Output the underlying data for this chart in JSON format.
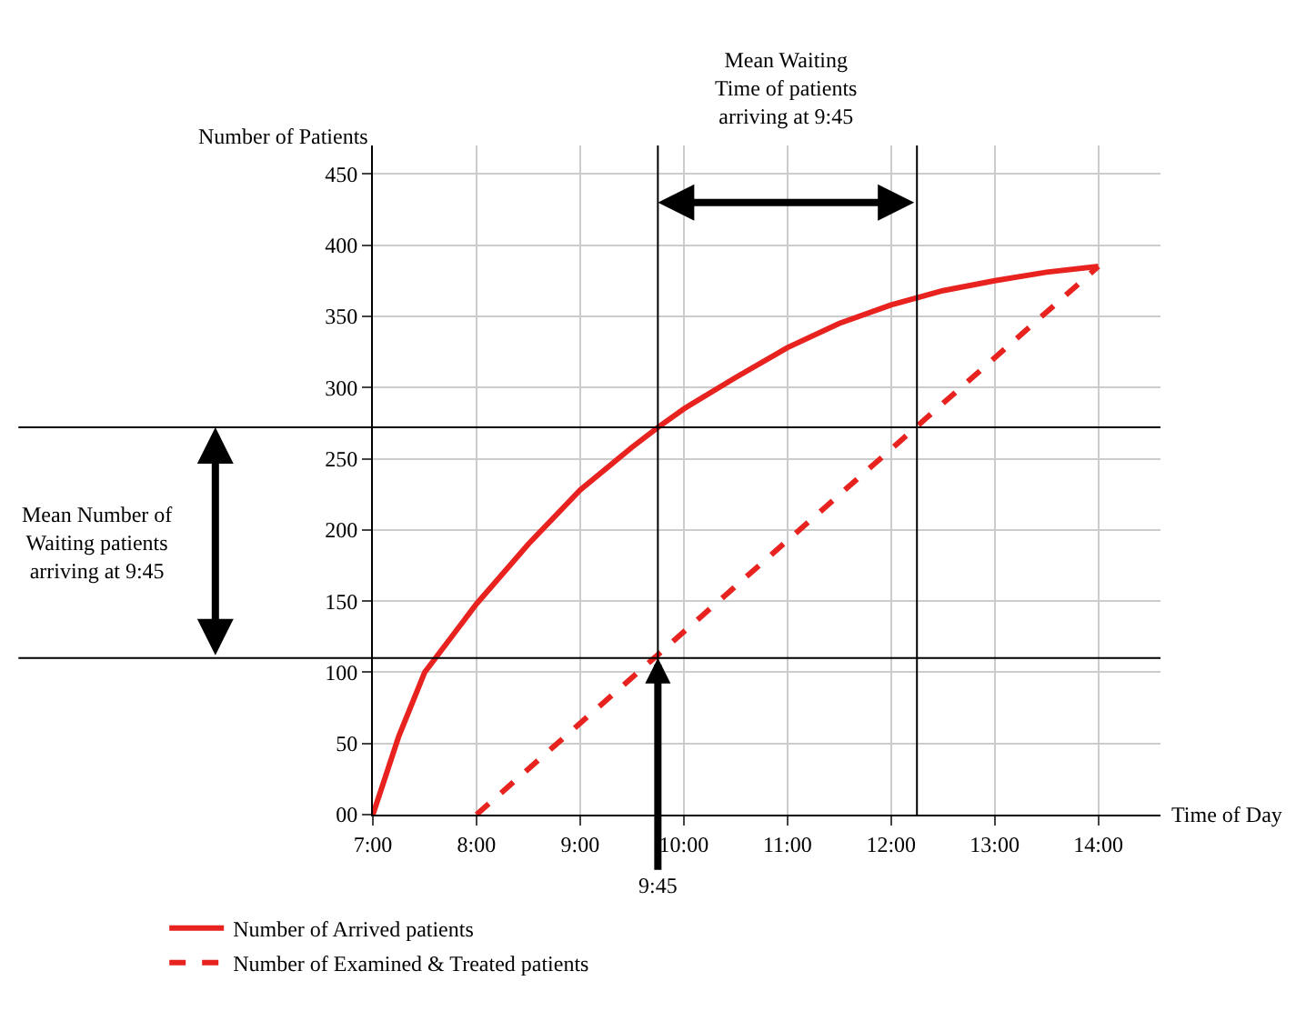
{
  "chart_data": {
    "type": "line",
    "xlabel": "Time of Day",
    "ylabel": "Number of Patients",
    "x": [
      7,
      7.25,
      7.5,
      8,
      8.5,
      9,
      9.5,
      9.75,
      10,
      10.5,
      11,
      11.5,
      12,
      12.5,
      13,
      13.5,
      14
    ],
    "series": [
      {
        "name": "Number of Arrived patients",
        "color": "#e8231f",
        "line_style": "solid",
        "values": [
          0,
          55,
          100,
          148,
          190,
          228,
          258,
          272,
          285,
          307,
          328,
          345,
          358,
          368,
          375,
          381,
          385
        ]
      },
      {
        "name": "Number of Examined & Treated patients",
        "color": "#e8231f",
        "line_style": "dashed",
        "x": [
          8,
          14
        ],
        "values": [
          0,
          385
        ]
      }
    ],
    "xlim": [
      7,
      14.6
    ],
    "xticks": [
      {
        "value": 7,
        "label": "7:00"
      },
      {
        "value": 8,
        "label": "8:00"
      },
      {
        "value": 9,
        "label": "9:00"
      },
      {
        "value": 10,
        "label": "10:00"
      },
      {
        "value": 11,
        "label": "11:00"
      },
      {
        "value": 12,
        "label": "12:00"
      },
      {
        "value": 13,
        "label": "13:00"
      },
      {
        "value": 14,
        "label": "14:00"
      }
    ],
    "ylim": [
      0,
      470
    ],
    "yticks": [
      {
        "value": 0,
        "label": "00"
      },
      50,
      100,
      150,
      200,
      250,
      300,
      350,
      400,
      450
    ],
    "ref_lines": [
      {
        "axis": "x",
        "value": 9.75,
        "color": "#000000"
      },
      {
        "axis": "x",
        "value": 12.25,
        "color": "#000000"
      },
      {
        "axis": "y",
        "value": 272,
        "color": "#000000"
      },
      {
        "axis": "y",
        "value": 110,
        "color": "#000000"
      }
    ],
    "annotations": [
      "Mean Waiting Time of patients arriving at 9:45",
      "Mean Number of Waiting patients arriving at 9:45",
      {
        "text": "9:45",
        "x": 9.75,
        "y": 110
      }
    ],
    "grid": true,
    "legend": "bottom",
    "marker": "none"
  }
}
